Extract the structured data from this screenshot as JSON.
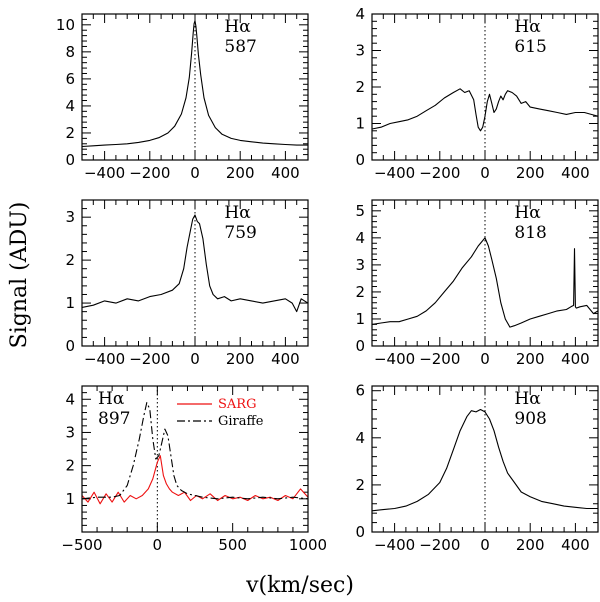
{
  "figure": {
    "xlabel": "v(km/sec)",
    "ylabel": "Signal (ADU)"
  },
  "chart_data": [
    {
      "type": "line",
      "id": "p587",
      "line1": "Hα",
      "line2": "587",
      "xlim": [
        -500,
        500
      ],
      "ylim": [
        0,
        10.8
      ],
      "xticks": [
        -400,
        -200,
        0,
        200,
        400
      ],
      "yticks": [
        0,
        2,
        4,
        6,
        8,
        10
      ],
      "series": [
        {
          "name": "spectrum",
          "color": "#000000",
          "dash": "",
          "x": [
            -500,
            -450,
            -400,
            -350,
            -300,
            -250,
            -200,
            -160,
            -120,
            -90,
            -60,
            -40,
            -25,
            -15,
            -8,
            -4,
            0,
            4,
            8,
            15,
            25,
            40,
            60,
            90,
            120,
            160,
            200,
            250,
            300,
            350,
            400,
            450,
            500
          ],
          "y": [
            1.0,
            1.05,
            1.1,
            1.15,
            1.2,
            1.3,
            1.45,
            1.65,
            2.0,
            2.5,
            3.4,
            4.6,
            6.1,
            7.9,
            9.4,
            10.1,
            10.3,
            9.9,
            9.2,
            7.8,
            6.3,
            4.6,
            3.3,
            2.4,
            1.9,
            1.6,
            1.45,
            1.35,
            1.25,
            1.2,
            1.15,
            1.1,
            1.1
          ]
        }
      ]
    },
    {
      "type": "line",
      "id": "p615",
      "line1": "Hα",
      "line2": "615",
      "xlim": [
        -500,
        500
      ],
      "ylim": [
        0,
        4
      ],
      "xticks": [
        -400,
        -200,
        0,
        200,
        400
      ],
      "yticks": [
        0,
        1,
        2,
        3,
        4
      ],
      "series": [
        {
          "name": "spectrum",
          "color": "#000000",
          "dash": "",
          "x": [
            -500,
            -460,
            -420,
            -380,
            -340,
            -300,
            -260,
            -220,
            -180,
            -140,
            -110,
            -90,
            -70,
            -50,
            -40,
            -30,
            -20,
            -10,
            0,
            10,
            20,
            30,
            40,
            50,
            60,
            70,
            80,
            90,
            100,
            120,
            140,
            160,
            180,
            200,
            240,
            280,
            320,
            360,
            400,
            440,
            470,
            500
          ],
          "y": [
            0.85,
            0.9,
            1.0,
            1.05,
            1.1,
            1.2,
            1.35,
            1.5,
            1.7,
            1.85,
            1.95,
            1.85,
            1.9,
            1.65,
            1.25,
            0.9,
            0.8,
            0.9,
            1.2,
            1.6,
            1.8,
            1.55,
            1.3,
            1.4,
            1.6,
            1.75,
            1.65,
            1.8,
            1.9,
            1.85,
            1.75,
            1.55,
            1.6,
            1.45,
            1.4,
            1.35,
            1.3,
            1.25,
            1.3,
            1.3,
            1.25,
            1.2
          ]
        }
      ]
    },
    {
      "type": "line",
      "id": "p759",
      "line1": "Hα",
      "line2": "759",
      "xlim": [
        -500,
        500
      ],
      "ylim": [
        0,
        3.4
      ],
      "xticks": [
        -400,
        -200,
        0,
        200,
        400
      ],
      "yticks": [
        0,
        1,
        2,
        3
      ],
      "series": [
        {
          "name": "spectrum",
          "color": "#000000",
          "dash": "",
          "x": [
            -500,
            -450,
            -400,
            -350,
            -300,
            -250,
            -200,
            -150,
            -100,
            -70,
            -50,
            -35,
            -20,
            -10,
            0,
            10,
            20,
            35,
            50,
            65,
            80,
            100,
            130,
            160,
            200,
            250,
            300,
            350,
            400,
            430,
            450,
            470,
            500
          ],
          "y": [
            0.9,
            0.95,
            1.05,
            1.0,
            1.1,
            1.05,
            1.15,
            1.2,
            1.3,
            1.45,
            1.8,
            2.3,
            2.7,
            2.95,
            3.05,
            2.9,
            2.85,
            2.5,
            1.9,
            1.4,
            1.2,
            1.1,
            1.15,
            1.05,
            1.1,
            1.05,
            1.0,
            1.05,
            1.1,
            1.0,
            0.8,
            1.1,
            1.0
          ]
        }
      ]
    },
    {
      "type": "line",
      "id": "p818",
      "line1": "Hα",
      "line2": "818",
      "xlim": [
        -500,
        500
      ],
      "ylim": [
        0,
        5.4
      ],
      "xticks": [
        -400,
        -200,
        0,
        200,
        400
      ],
      "yticks": [
        0,
        1,
        2,
        3,
        4,
        5
      ],
      "series": [
        {
          "name": "spectrum",
          "color": "#000000",
          "dash": "",
          "x": [
            -500,
            -460,
            -420,
            -380,
            -340,
            -300,
            -260,
            -220,
            -180,
            -140,
            -100,
            -60,
            -30,
            -10,
            0,
            15,
            30,
            50,
            70,
            90,
            110,
            130,
            160,
            200,
            240,
            280,
            320,
            360,
            380,
            392,
            396,
            400,
            404,
            420,
            450,
            480,
            500
          ],
          "y": [
            0.8,
            0.85,
            0.9,
            0.9,
            1.0,
            1.1,
            1.3,
            1.6,
            2.0,
            2.4,
            2.9,
            3.3,
            3.7,
            3.9,
            4.0,
            3.7,
            3.2,
            2.5,
            1.6,
            1.0,
            0.7,
            0.75,
            0.85,
            1.0,
            1.1,
            1.2,
            1.3,
            1.35,
            1.45,
            1.5,
            3.6,
            1.45,
            1.4,
            1.45,
            1.5,
            1.2,
            1.3
          ]
        }
      ]
    },
    {
      "type": "line",
      "id": "p897",
      "line1": "Hα",
      "line2": "897",
      "xlim": [
        -500,
        1000
      ],
      "ylim": [
        0,
        4.4
      ],
      "xticks": [
        -500,
        0,
        500,
        1000
      ],
      "yticks": [
        1,
        2,
        3,
        4
      ],
      "legend": [
        {
          "label": "SARG",
          "color": "#ee1111",
          "dash": ""
        },
        {
          "label": "Giraffe",
          "color": "#000000",
          "dash": "8 3 2 3"
        }
      ],
      "series": [
        {
          "name": "SARG",
          "color": "#ee1111",
          "dash": "",
          "x": [
            -500,
            -460,
            -420,
            -380,
            -340,
            -300,
            -260,
            -220,
            -180,
            -140,
            -100,
            -60,
            -30,
            0,
            20,
            40,
            60,
            80,
            100,
            140,
            180,
            220,
            260,
            300,
            350,
            400,
            450,
            500,
            550,
            600,
            650,
            700,
            750,
            800,
            850,
            900,
            950,
            1000
          ],
          "y": [
            1.1,
            0.9,
            1.2,
            0.85,
            1.15,
            0.9,
            1.2,
            0.9,
            1.1,
            1.0,
            1.1,
            1.3,
            1.6,
            2.1,
            2.3,
            1.7,
            1.45,
            1.3,
            1.2,
            1.1,
            1.2,
            0.95,
            1.1,
            1.0,
            1.15,
            0.95,
            1.1,
            1.0,
            1.05,
            0.95,
            1.1,
            1.0,
            1.05,
            0.95,
            1.1,
            1.0,
            1.3,
            1.05
          ]
        },
        {
          "name": "Giraffe",
          "color": "#000000",
          "dash": "8 3 2 3",
          "x": [
            -500,
            -400,
            -300,
            -250,
            -200,
            -160,
            -120,
            -90,
            -70,
            -50,
            -30,
            -10,
            10,
            30,
            50,
            70,
            90,
            110,
            130,
            160,
            200,
            250,
            300,
            400,
            500,
            600,
            700,
            800,
            900,
            1000
          ],
          "y": [
            1.0,
            1.05,
            1.05,
            1.1,
            1.4,
            2.0,
            2.8,
            3.5,
            3.9,
            3.7,
            2.8,
            2.2,
            2.3,
            2.7,
            3.1,
            2.9,
            2.3,
            1.7,
            1.4,
            1.25,
            1.15,
            1.1,
            1.05,
            1.0,
            1.05,
            1.0,
            1.05,
            1.0,
            1.05,
            1.0
          ]
        }
      ]
    },
    {
      "type": "line",
      "id": "p908",
      "line1": "Hα",
      "line2": "908",
      "xlim": [
        -500,
        500
      ],
      "ylim": [
        0,
        6.2
      ],
      "xticks": [
        -400,
        -200,
        0,
        200,
        400
      ],
      "yticks": [
        0,
        2,
        4,
        6
      ],
      "series": [
        {
          "name": "spectrum",
          "color": "#000000",
          "dash": "",
          "x": [
            -500,
            -450,
            -400,
            -350,
            -300,
            -250,
            -200,
            -170,
            -140,
            -110,
            -80,
            -60,
            -40,
            -20,
            0,
            20,
            40,
            60,
            80,
            100,
            130,
            160,
            200,
            250,
            300,
            350,
            400,
            450,
            500
          ],
          "y": [
            0.9,
            0.95,
            1.0,
            1.1,
            1.3,
            1.6,
            2.1,
            2.7,
            3.5,
            4.3,
            4.9,
            5.15,
            5.1,
            5.2,
            5.1,
            4.8,
            4.3,
            3.6,
            3.0,
            2.5,
            2.1,
            1.7,
            1.5,
            1.3,
            1.2,
            1.1,
            1.05,
            1.0,
            1.0
          ]
        }
      ]
    }
  ]
}
